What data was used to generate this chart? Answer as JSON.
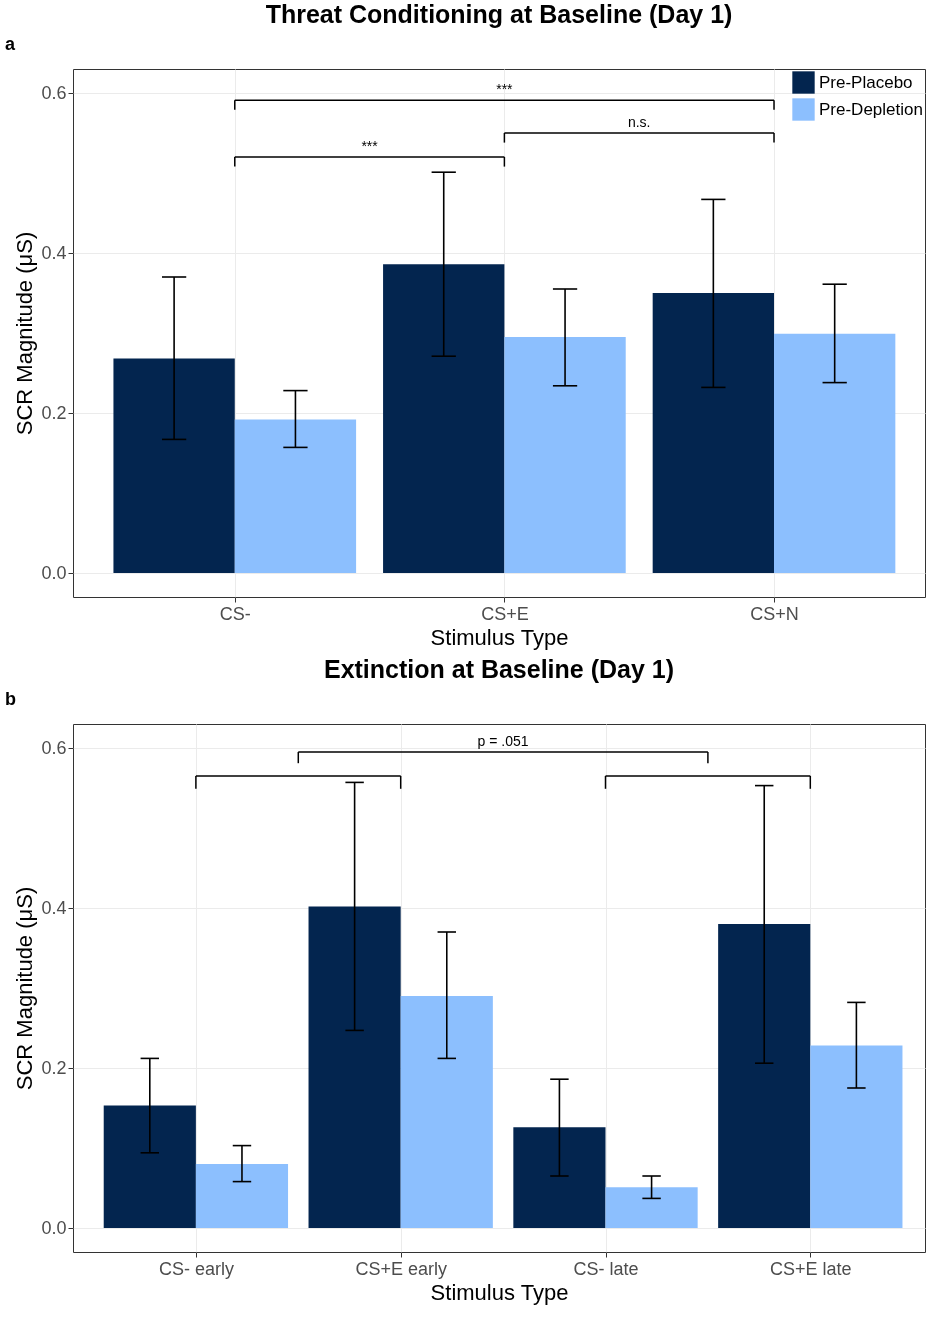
{
  "chart_data": [
    {
      "type": "bar",
      "title": "Threat Conditioning at Baseline (Day 1)",
      "xlabel": "Stimulus Type",
      "ylabel": "SCR Magnitude (μS)",
      "categories": [
        "CS-",
        "CS+E",
        "CS+N"
      ],
      "series": [
        {
          "name": "Pre-Placebo",
          "color": "#03254f",
          "values": [
            0.268,
            0.386,
            0.35
          ],
          "errors": [
            [
              0.167,
              0.37
            ],
            [
              0.271,
              0.501
            ],
            [
              0.232,
              0.467
            ]
          ]
        },
        {
          "name": "Pre-Depletion",
          "color": "#8cbffe",
          "values": [
            0.192,
            0.295,
            0.299
          ],
          "errors": [
            [
              0.157,
              0.228
            ],
            [
              0.234,
              0.355
            ],
            [
              0.238,
              0.361
            ]
          ]
        }
      ],
      "ylim": [
        -0.03,
        0.63
      ],
      "yticks": [
        {
          "value": 0,
          "label": "0.0"
        },
        {
          "value": 0.2,
          "label": "0.2"
        },
        {
          "value": 0.4,
          "label": "0.4"
        },
        {
          "value": 0.6,
          "label": "0.6"
        }
      ],
      "grid": true,
      "legend": "top right",
      "annotations": [
        "a",
        "***",
        "***",
        "n.s."
      ]
    },
    {
      "type": "bar",
      "title": "Extinction at Baseline (Day 1)",
      "xlabel": "Stimulus Type",
      "ylabel": "SCR Magnitude (μS)",
      "categories": [
        "CS- early",
        "CS+E early",
        "CS- late",
        "CS+E late"
      ],
      "series": [
        {
          "color": "#03254f",
          "values": [
            0.153,
            0.402,
            0.126,
            0.38
          ],
          "errors": [
            [
              0.094,
              0.212
            ],
            [
              0.247,
              0.557
            ],
            [
              0.065,
              0.186
            ],
            [
              0.206,
              0.553
            ]
          ]
        },
        {
          "color": "#8cbffe",
          "values": [
            0.08,
            0.29,
            0.051,
            0.228
          ],
          "errors": [
            [
              0.058,
              0.103
            ],
            [
              0.212,
              0.37
            ],
            [
              0.037,
              0.065
            ],
            [
              0.175,
              0.282
            ]
          ]
        }
      ],
      "ylim": [
        -0.03,
        0.63
      ],
      "yticks": [
        {
          "value": 0,
          "label": "0.0"
        },
        {
          "value": 0.2,
          "label": "0.2"
        },
        {
          "value": 0.4,
          "label": "0.4"
        },
        {
          "value": 0.6,
          "label": "0.6"
        }
      ],
      "grid": true,
      "legend": false,
      "annotations": [
        "b",
        "p = .051"
      ]
    }
  ]
}
